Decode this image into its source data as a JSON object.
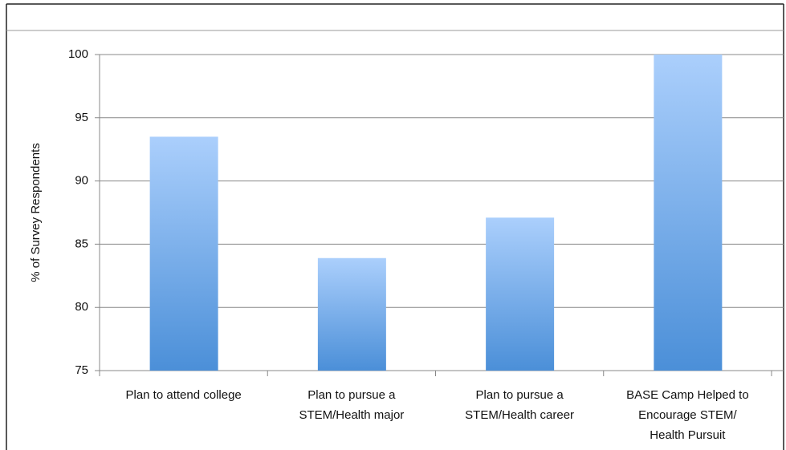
{
  "chart_data": {
    "type": "bar",
    "y_label": "% of Survey Respondents",
    "categories": [
      [
        "Plan to attend college"
      ],
      [
        "Plan to pursue a",
        "STEM/Health major"
      ],
      [
        "Plan to pursue a",
        "STEM/Health career"
      ],
      [
        "BASE Camp Helped to",
        "Encourage STEM/",
        "Health Pursuit"
      ]
    ],
    "values": [
      93.5,
      83.9,
      87.1,
      100
    ],
    "color": [
      "#abcffc",
      "#4b8fd8"
    ],
    "ylim": [
      75,
      100
    ],
    "yticks": [
      75,
      80,
      85,
      90,
      95,
      100
    ],
    "grid": true
  }
}
